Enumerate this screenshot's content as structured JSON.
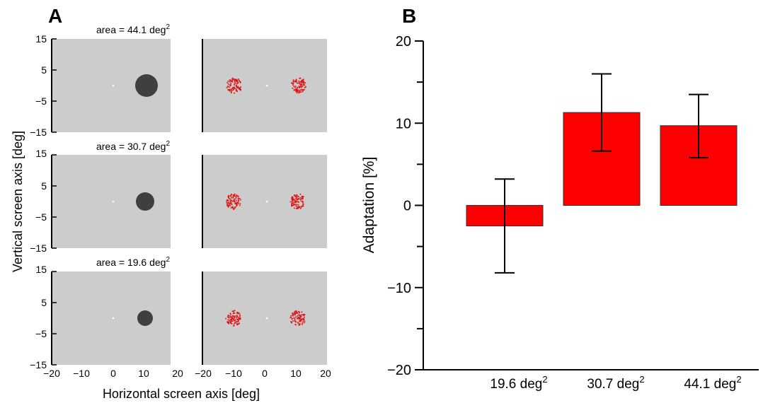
{
  "colors": {
    "panel_bg": "#cccccc",
    "disk": "#3f3f3f",
    "dots": "#e01010",
    "bar_fill": "#ff0000",
    "bar_edge": "#333333"
  },
  "panel_a": {
    "letter": "A",
    "ylabel": "Vertical screen axis  [deg]",
    "xlabel": "Horizontal screen axis  [deg]",
    "y_ticks": [
      "15",
      "5",
      "−5",
      "−15"
    ],
    "x_ticks_left": [
      "−20",
      "−10",
      "0",
      "10",
      "20"
    ],
    "x_ticks_right": [
      "−20",
      "−10",
      "0",
      "10",
      "20"
    ],
    "rows": [
      {
        "area_prefix": "area = 44.1",
        "area_unit": "deg",
        "exp": "2",
        "disk_area_deg2": 44.1
      },
      {
        "area_prefix": "area = 30.7",
        "area_unit": "deg",
        "exp": "2",
        "disk_area_deg2": 30.7
      },
      {
        "area_prefix": "area = 19.6",
        "area_unit": "deg",
        "exp": "2",
        "disk_area_deg2": 19.6
      }
    ]
  },
  "chart_data": {
    "type": "bar",
    "panel_letter": "B",
    "ylabel": "Adaptation [%]",
    "ylim": [
      -20,
      20
    ],
    "y_ticks": [
      {
        "v": 20,
        "label": "20"
      },
      {
        "v": 10,
        "label": "10"
      },
      {
        "v": 0,
        "label": "0"
      },
      {
        "v": -10,
        "label": "−10"
      },
      {
        "v": -20,
        "label": "−20"
      }
    ],
    "categories": [
      {
        "num": "19.6",
        "unit": "deg",
        "exp": "2"
      },
      {
        "num": "30.7",
        "unit": "deg",
        "exp": "2"
      },
      {
        "num": "44.1",
        "unit": "deg",
        "exp": "2"
      }
    ],
    "values": [
      -2.5,
      11.3,
      9.7
    ],
    "err_upper": [
      3.2,
      16.0,
      13.5
    ],
    "err_lower": [
      -8.2,
      6.6,
      5.8
    ]
  }
}
